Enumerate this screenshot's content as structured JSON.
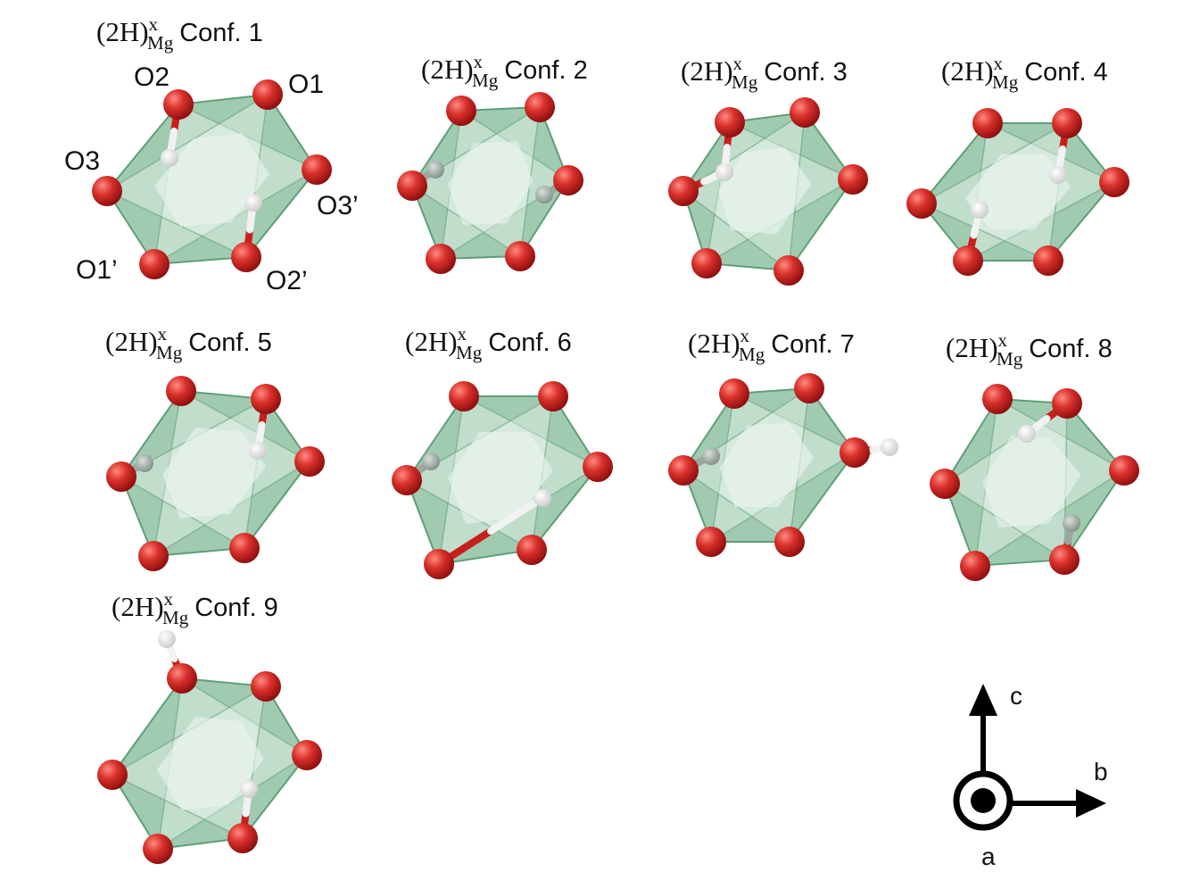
{
  "colors": {
    "face_fill": "#8fc2a2",
    "face_edge": "#5f9e78",
    "inner_fill": "#e9f5ee",
    "oxygen": "#c81e1e",
    "oxygen_highlight": "#ff8a80",
    "hydrogen": "#f2f2f2",
    "hydrogen_dim": "#9aa79f",
    "bond_o": "#c81e1e",
    "bond_h": "#f2f2f2",
    "axis": "#000000"
  },
  "label_parts": {
    "species": "(2H)",
    "charge": "x",
    "site": "Mg",
    "conf_prefix": "Conf."
  },
  "configurations": [
    {
      "number": "1"
    },
    {
      "number": "2"
    },
    {
      "number": "3"
    },
    {
      "number": "4"
    },
    {
      "number": "5"
    },
    {
      "number": "6"
    },
    {
      "number": "7"
    },
    {
      "number": "8"
    },
    {
      "number": "9"
    }
  ],
  "oxygen_labels": [
    "O2",
    "O1",
    "O3",
    "O3’",
    "O1’",
    "O2’"
  ],
  "axes": {
    "up": "c",
    "right": "b",
    "out": "a"
  }
}
